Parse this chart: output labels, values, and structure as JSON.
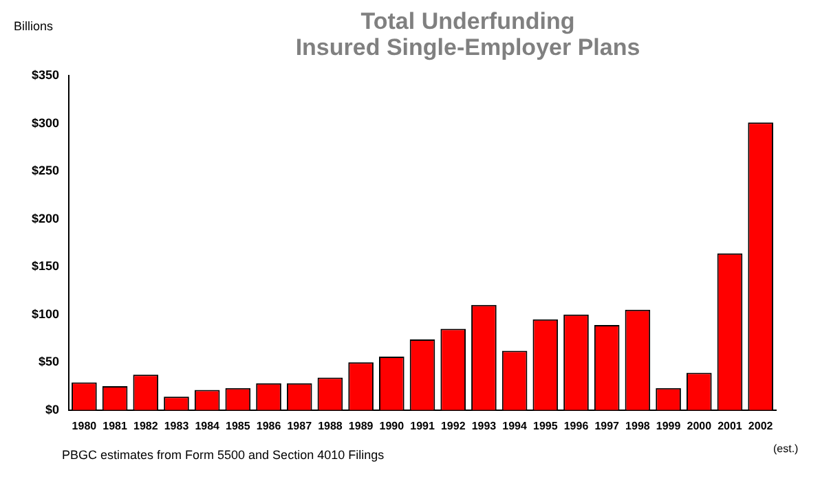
{
  "chart_data": {
    "type": "bar",
    "title": [
      "Total Underfunding",
      "Insured Single-Employer Plans"
    ],
    "ylabel": "Billions",
    "categories": [
      "1980",
      "1981",
      "1982",
      "1983",
      "1984",
      "1985",
      "1986",
      "1987",
      "1988",
      "1989",
      "1990",
      "1991",
      "1992",
      "1993",
      "1994",
      "1995",
      "1996",
      "1997",
      "1998",
      "1999",
      "2000",
      "2001",
      "2002"
    ],
    "values": [
      29,
      25,
      37,
      14,
      21,
      23,
      28,
      28,
      34,
      50,
      56,
      74,
      85,
      110,
      62,
      95,
      100,
      89,
      105,
      23,
      39,
      164,
      301
    ],
    "color": "#ff0000",
    "ylim": [
      0,
      350
    ],
    "yticks": [
      {
        "value": 0,
        "label": "$0"
      },
      {
        "value": 50,
        "label": "$50"
      },
      {
        "value": 100,
        "label": "$100"
      },
      {
        "value": 150,
        "label": "$150"
      },
      {
        "value": 200,
        "label": "$200"
      },
      {
        "value": 250,
        "label": "$250"
      },
      {
        "value": 300,
        "label": "$300"
      },
      {
        "value": 350,
        "label": "$350"
      }
    ],
    "grid": false,
    "legend": false,
    "annotations": [
      "PBGC estimates from Form 5500 and Section 4010 Filings",
      "(est.)"
    ]
  }
}
